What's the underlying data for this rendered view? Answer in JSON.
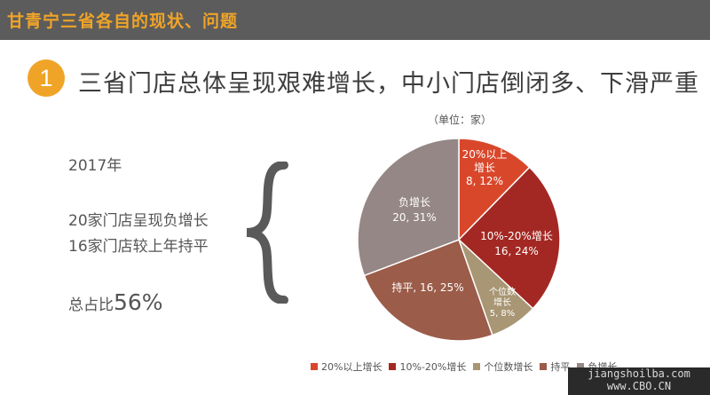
{
  "header": {
    "title": "甘青宁三省各自的现状、问题"
  },
  "section": {
    "number": "1",
    "headline": "三省门店总体呈现艰难增长，中小门店倒闭多、下滑严重"
  },
  "summary": {
    "year": "2017年",
    "line1": "20家门店呈现负增长",
    "line2": "16家门店较上年持平",
    "total_label": "总占比",
    "total_value": "56%"
  },
  "chart_data": {
    "type": "pie",
    "unit_label": "（单位：家）",
    "slices": [
      {
        "name": "20%以上增长",
        "label_lines": [
          "20%以上",
          "增长",
          "8, 12%"
        ],
        "value": 8,
        "percent": 12,
        "color": "#d9472b"
      },
      {
        "name": "10%-20%增长",
        "label_lines": [
          "10%-20%增长",
          "16, 24%"
        ],
        "value": 16,
        "percent": 24,
        "color": "#a32823"
      },
      {
        "name": "个位数增长",
        "label_lines": [
          "个位数",
          "增长",
          "5, 8%"
        ],
        "value": 5,
        "percent": 8,
        "color": "#a89674"
      },
      {
        "name": "持平",
        "label_lines": [
          "持平, 16, 25%"
        ],
        "value": 16,
        "percent": 25,
        "color": "#9b5c4a"
      },
      {
        "name": "负增长",
        "label_lines": [
          "负增长",
          "20, 31%"
        ],
        "value": 20,
        "percent": 31,
        "color": "#958785"
      }
    ],
    "legend_position": "bottom"
  },
  "watermark": {
    "line1": "jiangshoilba.com",
    "line2": "www.CBO.CN"
  }
}
